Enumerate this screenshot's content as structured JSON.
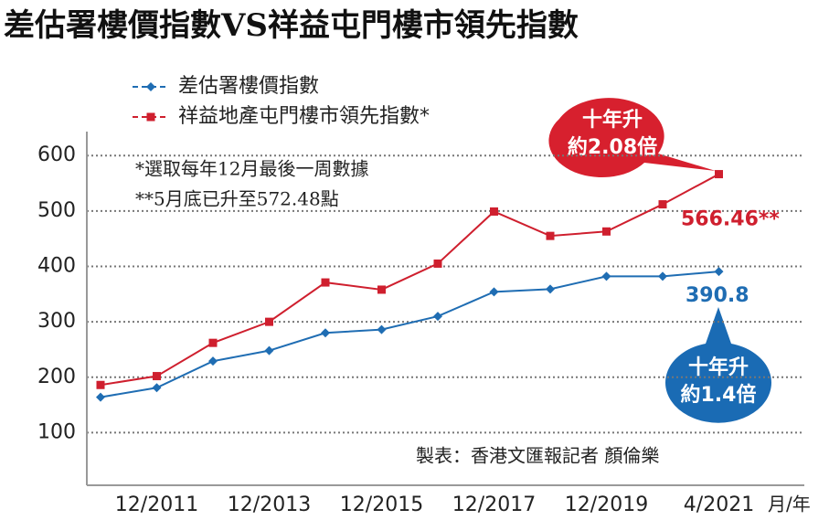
{
  "chart_data": {
    "type": "line",
    "title": "差估署樓價指數VS祥益屯門樓市領先指數",
    "x_label": "月/年",
    "categories": [
      null,
      "12/2011",
      null,
      "12/2013",
      null,
      "12/2015",
      null,
      "12/2017",
      null,
      "12/2019",
      null,
      "4/2021"
    ],
    "series": [
      {
        "name": "差估署樓價指數",
        "color": "#1f6db3",
        "marker": "diamond",
        "values": [
          164,
          181,
          229,
          248,
          280,
          286,
          310,
          354,
          359,
          382,
          382,
          390.8
        ]
      },
      {
        "name": "祥益地產屯門樓市領先指數*",
        "color": "#cf1f2e",
        "marker": "square",
        "values": [
          186,
          202,
          262,
          300,
          371,
          358,
          405,
          499,
          455,
          463,
          512,
          566.46
        ],
        "value_labels": [
          null,
          null,
          null,
          null,
          null,
          null,
          null,
          null,
          null,
          null,
          null,
          "566.46**"
        ]
      }
    ],
    "ylim": [
      5,
      635
    ],
    "yticks": [
      100,
      200,
      300,
      400,
      500,
      600
    ],
    "grid": true,
    "notes": [
      "*選取每年12月最後一周數據",
      "**5月底已升至572.48點"
    ],
    "source": "製表：香港文匯報記者 顏倫樂",
    "callouts": [
      {
        "lines": [
          "十年升",
          "約2.08倍"
        ],
        "color": "#d7202e"
      },
      {
        "lines": [
          "十年升",
          "約1.4倍"
        ],
        "color": "#1a6bb4"
      }
    ]
  }
}
